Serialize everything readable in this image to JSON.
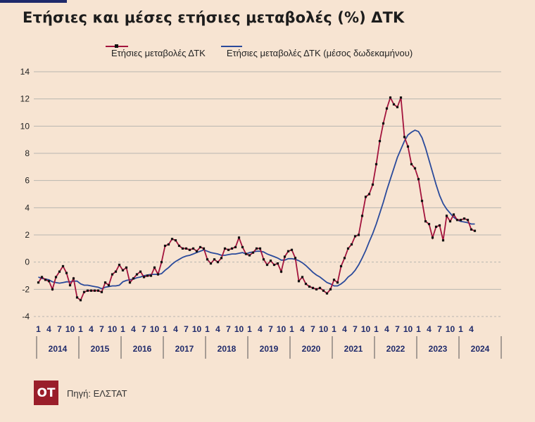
{
  "header": {
    "title": "Ετήσιες και μέσες ετήσιες μεταβολές (%) ΔΤΚ"
  },
  "legend": {
    "series_a_label": "Ετήσιες μεταβολές ΔΤΚ",
    "series_b_label": "Ετήσιες μεταβολές ΔΤΚ (μέσος δωδεκαμήνου)"
  },
  "footer": {
    "logo_text": "ΟΤ",
    "source": "Πηγή: ΕΛΣΤΑΤ"
  },
  "colors": {
    "background": "#f7e4d2",
    "series_a": "#a3143d",
    "series_b": "#2a4a9b",
    "markers": "#111111",
    "grid": "#b9b6b0"
  },
  "chart_data": {
    "type": "line",
    "title": "Ετήσιες και μέσες ετήσιες μεταβολές (%) ΔΤΚ",
    "xlabel": "",
    "ylabel": "",
    "ylim": [
      -4,
      14
    ],
    "yticks": [
      "14",
      "12",
      "10",
      "8",
      "6",
      "4",
      "2",
      "0",
      "-2",
      "-4"
    ],
    "grid": true,
    "legend_position": "top",
    "month_ticks": [
      "1",
      "4",
      "7",
      "10"
    ],
    "years": [
      "2014",
      "2015",
      "2016",
      "2017",
      "2018",
      "2019",
      "2020",
      "2021",
      "2022",
      "2023",
      "2024"
    ],
    "x_start": "2014-01",
    "series": [
      {
        "name": "Ετήσιες μεταβολές ΔΤΚ",
        "values": [
          -1.5,
          -1.1,
          -1.3,
          -1.4,
          -2.0,
          -1.1,
          -0.7,
          -0.3,
          -0.8,
          -1.7,
          -1.2,
          -2.6,
          -2.8,
          -2.2,
          -2.1,
          -2.1,
          -2.1,
          -2.1,
          -2.2,
          -1.5,
          -1.7,
          -0.9,
          -0.7,
          -0.2,
          -0.6,
          -0.4,
          -1.5,
          -1.2,
          -0.9,
          -0.7,
          -1.1,
          -1.0,
          -1.0,
          -0.4,
          -0.9,
          0.0,
          1.2,
          1.3,
          1.7,
          1.6,
          1.2,
          1.0,
          1.0,
          0.9,
          1.0,
          0.8,
          1.1,
          1.0,
          0.2,
          -0.1,
          0.2,
          0.0,
          0.3,
          1.0,
          0.9,
          1.0,
          1.1,
          1.8,
          1.1,
          0.6,
          0.5,
          0.7,
          1.0,
          1.0,
          0.2,
          -0.2,
          0.1,
          -0.2,
          -0.1,
          -0.7,
          0.4,
          0.8,
          0.9,
          0.3,
          -1.4,
          -1.1,
          -1.6,
          -1.8,
          -1.9,
          -2.0,
          -1.9,
          -2.1,
          -2.3,
          -2.0,
          -1.3,
          -1.5,
          -0.3,
          0.3,
          1.0,
          1.3,
          1.9,
          2.0,
          3.4,
          4.8,
          5.0,
          5.7,
          7.2,
          8.9,
          10.2,
          11.3,
          12.1,
          11.6,
          11.4,
          12.1,
          9.2,
          8.5,
          7.2,
          6.9,
          6.1,
          4.5,
          3.0,
          2.8,
          1.8,
          2.6,
          2.7,
          1.6,
          3.4,
          3.0,
          3.5,
          3.1,
          3.1,
          3.2,
          3.1,
          2.4,
          2.3
        ]
      },
      {
        "name": "Ετήσιες μεταβολές ΔΤΚ (μέσος δωδεκαμήνου)",
        "values": [
          -1.1,
          -1.2,
          -1.25,
          -1.3,
          -1.45,
          -1.5,
          -1.55,
          -1.5,
          -1.45,
          -1.45,
          -1.4,
          -1.4,
          -1.6,
          -1.7,
          -1.7,
          -1.75,
          -1.8,
          -1.85,
          -1.95,
          -1.85,
          -1.8,
          -1.75,
          -1.75,
          -1.7,
          -1.45,
          -1.35,
          -1.3,
          -1.25,
          -1.15,
          -1.1,
          -1.0,
          -0.95,
          -0.9,
          -0.9,
          -0.9,
          -0.85,
          -0.6,
          -0.4,
          -0.15,
          0.05,
          0.2,
          0.35,
          0.45,
          0.5,
          0.6,
          0.7,
          0.8,
          0.9,
          0.8,
          0.7,
          0.65,
          0.6,
          0.5,
          0.5,
          0.55,
          0.6,
          0.6,
          0.65,
          0.7,
          0.6,
          0.7,
          0.75,
          0.8,
          0.8,
          0.75,
          0.6,
          0.5,
          0.4,
          0.3,
          0.15,
          0.15,
          0.25,
          0.25,
          0.2,
          0.1,
          -0.05,
          -0.25,
          -0.5,
          -0.75,
          -0.95,
          -1.1,
          -1.3,
          -1.5,
          -1.6,
          -1.75,
          -1.75,
          -1.6,
          -1.4,
          -1.1,
          -0.9,
          -0.6,
          -0.2,
          0.3,
          0.85,
          1.5,
          2.1,
          2.8,
          3.6,
          4.4,
          5.3,
          6.1,
          6.9,
          7.7,
          8.3,
          8.9,
          9.35,
          9.55,
          9.7,
          9.6,
          9.15,
          8.4,
          7.5,
          6.6,
          5.7,
          4.9,
          4.3,
          3.9,
          3.6,
          3.3,
          3.1,
          3.0,
          2.95,
          2.9,
          2.8,
          2.8
        ]
      }
    ]
  }
}
